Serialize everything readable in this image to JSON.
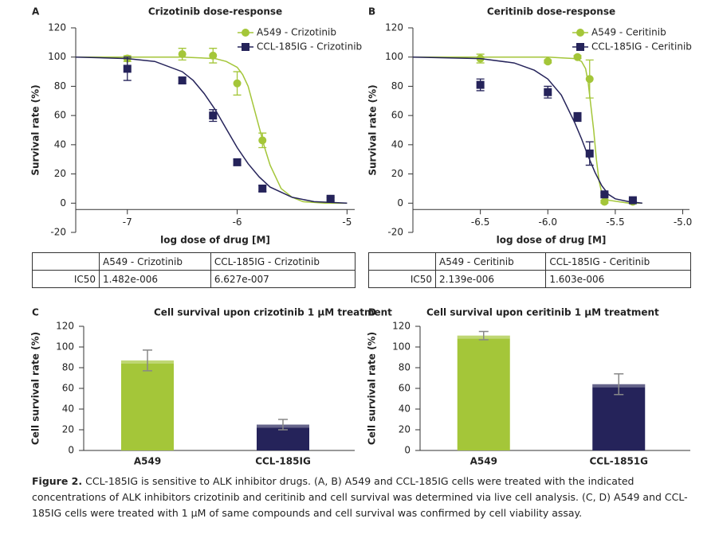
{
  "chart_data": [
    {
      "type": "scatter",
      "label": "A",
      "title": "Crizotinib dose-response",
      "x_label": "log dose of drug [M]",
      "y_label": "Survival rate (%)",
      "xlim": [
        -7.47,
        -4.93
      ],
      "xticks": [
        -7,
        -6,
        -5
      ],
      "ylim": [
        -20,
        120
      ],
      "yticks": [
        -20,
        0,
        20,
        40,
        60,
        80,
        100,
        120
      ],
      "legend": "upper right",
      "x": [
        -7,
        -6.5,
        -6.22,
        -6,
        -5.77,
        -5.15
      ],
      "series": [
        {
          "name": "A549 - Crizotinib",
          "color": "#a4c639",
          "marker": "circle",
          "values": [
            99,
            102,
            101,
            82,
            43,
            3
          ],
          "errors": [
            2,
            4,
            5,
            8,
            5,
            2
          ],
          "fit_x": [
            -7.47,
            -6.5,
            -6.2,
            -6.1,
            -6.0,
            -5.95,
            -5.9,
            -5.85,
            -5.8,
            -5.75,
            -5.7,
            -5.6,
            -5.5,
            -5.4,
            -5.2,
            -5.0
          ],
          "fit_y": [
            100,
            100,
            99,
            97,
            93,
            88,
            80,
            66,
            52,
            38,
            26,
            10,
            4,
            1,
            0,
            0
          ]
        },
        {
          "name": "CCL-185IG - Crizotinib",
          "color": "#25235a",
          "marker": "square",
          "values": [
            92,
            84,
            60,
            28,
            10,
            3
          ],
          "errors": [
            8,
            2,
            4,
            2,
            2,
            1
          ],
          "fit_x": [
            -7.47,
            -7,
            -6.75,
            -6.5,
            -6.4,
            -6.3,
            -6.2,
            -6.1,
            -6,
            -5.9,
            -5.8,
            -5.7,
            -5.5,
            -5.3,
            -5.0
          ],
          "fit_y": [
            100,
            99,
            97,
            90,
            84,
            75,
            64,
            51,
            38,
            27,
            18,
            11,
            4,
            1,
            0
          ]
        }
      ]
    },
    {
      "type": "scatter",
      "label": "B",
      "title": "Ceritinib dose-response",
      "x_label": "log dose of drug [M]",
      "y_label": "Survival rate (%)",
      "xlim": [
        -7.0,
        -4.95
      ],
      "xticks": [
        -6.5,
        {
          "value": -6,
          "label": "-6.0"
        },
        -5.5,
        {
          "value": -5,
          "label": "-5.0"
        }
      ],
      "ylim": [
        -20,
        120
      ],
      "yticks": [
        -20,
        0,
        20,
        40,
        60,
        80,
        100,
        120
      ],
      "legend": "upper right",
      "x": [
        -6.5,
        -6.0,
        -5.78,
        -5.69,
        -5.58,
        -5.37
      ],
      "series": [
        {
          "name": "A549 - Ceritinib",
          "color": "#a4c639",
          "marker": "circle",
          "values": [
            99,
            97,
            100,
            85,
            1,
            1
          ],
          "errors": [
            3,
            1,
            1,
            13,
            1,
            1
          ],
          "fit_x": [
            -7,
            -6,
            -5.8,
            -5.75,
            -5.72,
            -5.7,
            -5.68,
            -5.66,
            -5.64,
            -5.62,
            -5.6,
            -5.55,
            -5.4,
            -5.3
          ],
          "fit_y": [
            100,
            100,
            99,
            97,
            92,
            82,
            66,
            50,
            30,
            15,
            7,
            2,
            0,
            0
          ]
        },
        {
          "name": "CCL-185IG - Ceritinib",
          "color": "#25235a",
          "marker": "square",
          "values": [
            81,
            76,
            59,
            34,
            6,
            2
          ],
          "errors": [
            4,
            4,
            3,
            8,
            1,
            1
          ],
          "fit_x": [
            -7,
            -6.5,
            -6.25,
            -6.1,
            -6,
            -5.9,
            -5.8,
            -5.75,
            -5.7,
            -5.65,
            -5.6,
            -5.55,
            -5.5,
            -5.4,
            -5.3
          ],
          "fit_y": [
            100,
            99,
            96,
            91,
            85,
            74,
            55,
            44,
            32,
            21,
            12,
            6,
            3,
            1,
            0
          ]
        }
      ]
    },
    {
      "type": "bar",
      "label": "C",
      "title": "Cell survival upon crizotinib 1 µM treatment",
      "y_label": "Cell survival rate (%)",
      "categories": [
        "A549",
        "CCL-185IG"
      ],
      "values": [
        87,
        25
      ],
      "errors": [
        10,
        5
      ],
      "colors": [
        "#a4c639",
        "#25235a"
      ],
      "ylim": [
        0,
        120
      ],
      "yticks": [
        0,
        20,
        40,
        60,
        80,
        100,
        120
      ]
    },
    {
      "type": "bar",
      "label": "D",
      "title": "Cell survival upon ceritinib 1 µM treatment",
      "y_label": "Cell survival rate (%)",
      "categories": [
        "A549",
        "CCL-1851G"
      ],
      "values": [
        111,
        64
      ],
      "errors": [
        4,
        10
      ],
      "colors": [
        "#a4c639",
        "#25235a"
      ],
      "ylim": [
        0,
        120
      ],
      "yticks": [
        0,
        20,
        40,
        60,
        80,
        100,
        120
      ]
    }
  ],
  "tables": [
    {
      "header": [
        "A549 - Crizotinib",
        "CCL-185IG - Crizotinib"
      ],
      "rows": [
        [
          "IC50",
          "1.482e-006",
          "6.627e-007"
        ]
      ]
    },
    {
      "header": [
        "A549 - Ceritinib",
        "CCL-185IG - Ceritinib"
      ],
      "rows": [
        [
          "IC50",
          "2.139e-006",
          "1.603e-006"
        ]
      ]
    }
  ],
  "caption": {
    "label": "Figure 2.",
    "text": "CCL-185IG is sensitive to ALK inhibitor drugs. (A, B) A549 and CCL-185IG cells were treated with the indicated concentrations of ALK inhibitors crizotinib and ceritinib and cell survival was determined via live cell analysis. (C, D) A549 and CCL-185IG cells were treated with 1 µM of same compounds and cell survival was confirmed by cell viability assay."
  }
}
